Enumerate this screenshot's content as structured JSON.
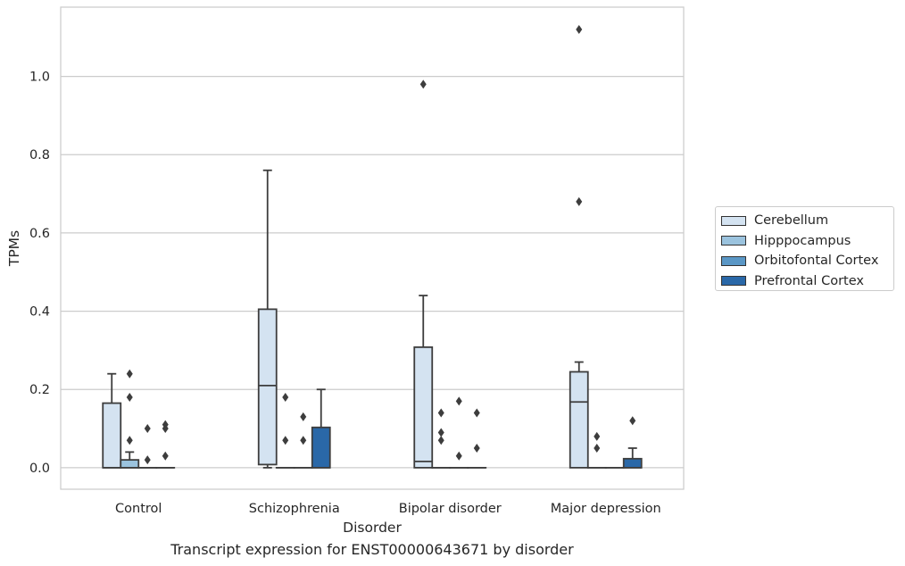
{
  "chart_data": {
    "type": "box",
    "xlabel": "Disorder",
    "ylabel": "TPMs",
    "caption": "Transcript expression for ENST00000643671 by disorder",
    "categories": [
      "Control",
      "Schizophrenia",
      "Bipolar disorder",
      "Major depression"
    ],
    "ylim": [
      -0.055,
      1.177
    ],
    "yticks": [
      "0.0",
      "0.2",
      "0.4",
      "0.6",
      "0.8",
      "1.0"
    ],
    "grid": true,
    "legend_position": "right",
    "series": [
      {
        "name": "Cerebellum",
        "color": "#d4e3f1",
        "boxes": [
          {
            "q1": 0.0,
            "median": 0.0,
            "q3": 0.165,
            "whisker_low": 0.0,
            "whisker_high": 0.24,
            "outliers": []
          },
          {
            "q1": 0.008,
            "median": 0.21,
            "q3": 0.405,
            "whisker_low": 0.0,
            "whisker_high": 0.76,
            "outliers": []
          },
          {
            "q1": 0.0,
            "median": 0.016,
            "q3": 0.308,
            "whisker_low": 0.0,
            "whisker_high": 0.44,
            "outliers": [
              0.98
            ]
          },
          {
            "q1": 0.0,
            "median": 0.168,
            "q3": 0.245,
            "whisker_low": 0.0,
            "whisker_high": 0.27,
            "outliers": [
              0.68,
              1.12
            ]
          }
        ]
      },
      {
        "name": "Hipppocampus",
        "color": "#9bc3de",
        "boxes": [
          {
            "q1": 0.0,
            "median": 0.0,
            "q3": 0.02,
            "whisker_low": 0.0,
            "whisker_high": 0.04,
            "outliers": [
              0.07,
              0.18,
              0.24
            ]
          },
          {
            "q1": 0.0,
            "median": 0.0,
            "q3": 0.0,
            "whisker_low": 0.0,
            "whisker_high": 0.0,
            "outliers": [
              0.07,
              0.18
            ]
          },
          {
            "q1": 0.0,
            "median": 0.0,
            "q3": 0.0,
            "whisker_low": 0.0,
            "whisker_high": 0.0,
            "outliers": [
              0.07,
              0.09,
              0.14
            ]
          },
          {
            "q1": 0.0,
            "median": 0.0,
            "q3": 0.0,
            "whisker_low": 0.0,
            "whisker_high": 0.0,
            "outliers": [
              0.05,
              0.08
            ]
          }
        ]
      },
      {
        "name": "Orbitofontal Cortex",
        "color": "#5a97c6",
        "boxes": [
          {
            "q1": 0.0,
            "median": 0.0,
            "q3": 0.0,
            "whisker_low": 0.0,
            "whisker_high": 0.0,
            "outliers": [
              0.02,
              0.1
            ]
          },
          {
            "q1": 0.0,
            "median": 0.0,
            "q3": 0.0,
            "whisker_low": 0.0,
            "whisker_high": 0.0,
            "outliers": [
              0.07,
              0.13
            ]
          },
          {
            "q1": 0.0,
            "median": 0.0,
            "q3": 0.0,
            "whisker_low": 0.0,
            "whisker_high": 0.0,
            "outliers": [
              0.03,
              0.17
            ]
          },
          {
            "q1": 0.0,
            "median": 0.0,
            "q3": 0.0,
            "whisker_low": 0.0,
            "whisker_high": 0.0,
            "outliers": []
          }
        ]
      },
      {
        "name": "Prefrontal Cortex",
        "color": "#2a68a8",
        "boxes": [
          {
            "q1": 0.0,
            "median": 0.0,
            "q3": 0.0,
            "whisker_low": 0.0,
            "whisker_high": 0.0,
            "outliers": [
              0.03,
              0.1,
              0.11
            ]
          },
          {
            "q1": 0.0,
            "median": 0.0,
            "q3": 0.103,
            "whisker_low": 0.0,
            "whisker_high": 0.2,
            "outliers": []
          },
          {
            "q1": 0.0,
            "median": 0.0,
            "q3": 0.0,
            "whisker_low": 0.0,
            "whisker_high": 0.0,
            "outliers": [
              0.05,
              0.14
            ]
          },
          {
            "q1": 0.0,
            "median": 0.0,
            "q3": 0.023,
            "whisker_low": 0.0,
            "whisker_high": 0.05,
            "outliers": [
              0.12
            ]
          }
        ]
      }
    ]
  }
}
